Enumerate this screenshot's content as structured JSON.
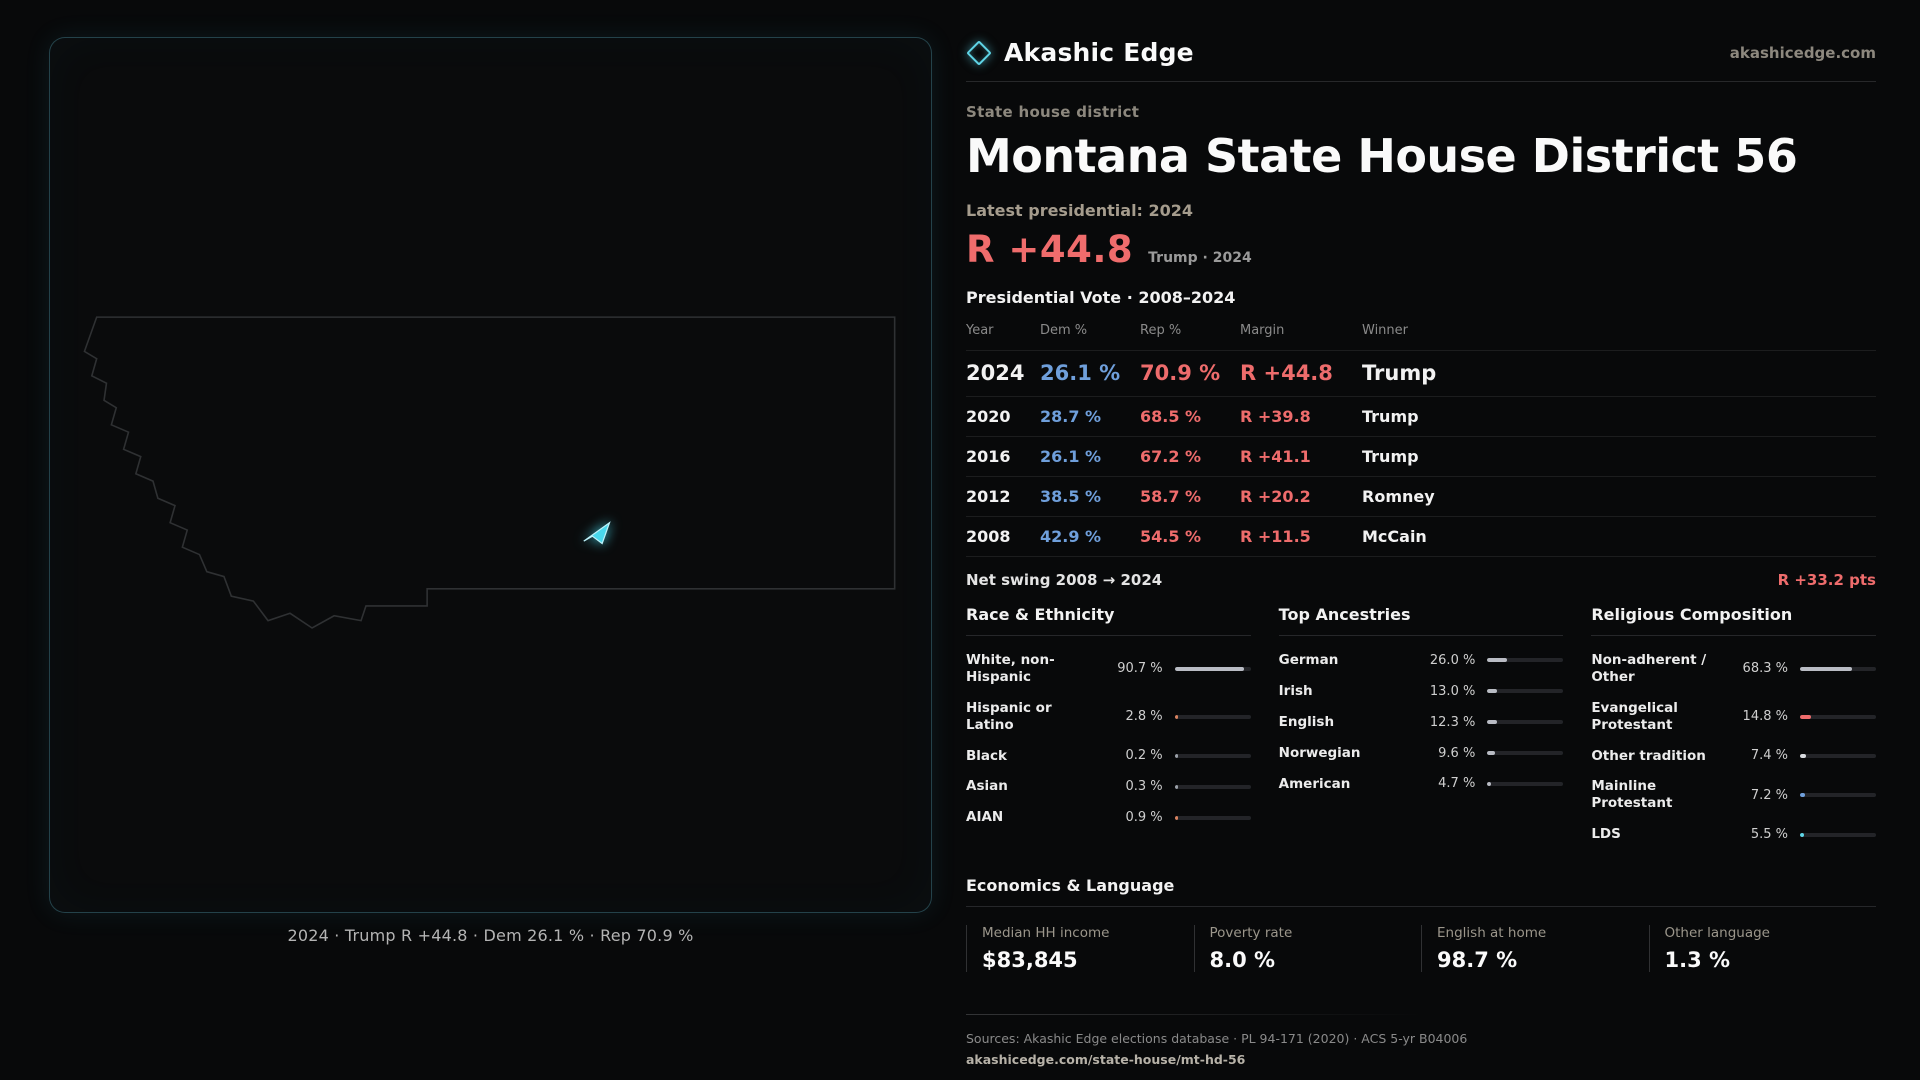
{
  "brand": {
    "name": "Akashic Edge",
    "domain": "akashicedge.com"
  },
  "header": {
    "category": "State house district",
    "title": "Montana State House District 56",
    "latest_label": "Latest presidential: 2024",
    "margin_value": "R +44.8",
    "margin_context": "Trump · 2024"
  },
  "map": {
    "caption": "2024 · Trump R +44.8 · Dem 26.1 % · Rep 70.9 %"
  },
  "vote_table": {
    "title": "Presidential Vote · 2008–2024",
    "columns": [
      "Year",
      "Dem %",
      "Rep %",
      "Margin",
      "Winner"
    ],
    "rows": [
      {
        "year": "2024",
        "dem": "26.1 %",
        "rep": "70.9 %",
        "margin": "R +44.8",
        "winner": "Trump"
      },
      {
        "year": "2020",
        "dem": "28.7 %",
        "rep": "68.5 %",
        "margin": "R +39.8",
        "winner": "Trump"
      },
      {
        "year": "2016",
        "dem": "26.1 %",
        "rep": "67.2 %",
        "margin": "R +41.1",
        "winner": "Trump"
      },
      {
        "year": "2012",
        "dem": "38.5 %",
        "rep": "58.7 %",
        "margin": "R +20.2",
        "winner": "Romney"
      },
      {
        "year": "2008",
        "dem": "42.9 %",
        "rep": "54.5 %",
        "margin": "R +11.5",
        "winner": "McCain"
      }
    ],
    "net_swing_label": "Net swing 2008 → 2024",
    "net_swing_value": "R +33.2 pts"
  },
  "demographics": {
    "race": {
      "title": "Race & Ethnicity",
      "items": [
        {
          "label": "White, non-Hispanic",
          "value": "90.7 %",
          "pct": 90.7,
          "color": "#b9bcc4"
        },
        {
          "label": "Hispanic or Latino",
          "value": "2.8 %",
          "pct": 2.8,
          "color": "#d9825f"
        },
        {
          "label": "Black",
          "value": "0.2 %",
          "pct": 0.2,
          "color": "#9aa0a8"
        },
        {
          "label": "Asian",
          "value": "0.3 %",
          "pct": 0.3,
          "color": "#9aa0a8"
        },
        {
          "label": "AIAN",
          "value": "0.9 %",
          "pct": 0.9,
          "color": "#d9825f"
        }
      ]
    },
    "ancestries": {
      "title": "Top Ancestries",
      "items": [
        {
          "label": "German",
          "value": "26.0 %",
          "pct": 26.0,
          "color": "#b9bcc4"
        },
        {
          "label": "Irish",
          "value": "13.0 %",
          "pct": 13.0,
          "color": "#b9bcc4"
        },
        {
          "label": "English",
          "value": "12.3 %",
          "pct": 12.3,
          "color": "#b9bcc4"
        },
        {
          "label": "Norwegian",
          "value": "9.6 %",
          "pct": 9.6,
          "color": "#b9bcc4"
        },
        {
          "label": "American",
          "value": "4.7 %",
          "pct": 4.7,
          "color": "#b9bcc4"
        }
      ]
    },
    "religion": {
      "title": "Religious Composition",
      "items": [
        {
          "label": "Non-adherent / Other",
          "value": "68.3 %",
          "pct": 68.3,
          "color": "#b9bcc4"
        },
        {
          "label": "Evangelical Protestant",
          "value": "14.8 %",
          "pct": 14.8,
          "color": "#ee6c6c"
        },
        {
          "label": "Other tradition",
          "value": "7.4 %",
          "pct": 7.4,
          "color": "#d8dade"
        },
        {
          "label": "Mainline Protestant",
          "value": "7.2 %",
          "pct": 7.2,
          "color": "#6f9fdb"
        },
        {
          "label": "LDS",
          "value": "5.5 %",
          "pct": 5.5,
          "color": "#5fd6e8"
        }
      ]
    }
  },
  "economics": {
    "title": "Economics & Language",
    "stats": [
      {
        "label": "Median HH income",
        "value": "$83,845"
      },
      {
        "label": "Poverty rate",
        "value": "8.0 %"
      },
      {
        "label": "English at home",
        "value": "98.7 %"
      },
      {
        "label": "Other language",
        "value": "1.3 %"
      }
    ]
  },
  "footer": {
    "sources": "Sources: Akashic Edge elections database · PL 94-171 (2020) · ACS 5-yr B04006",
    "permalink": "akashicedge.com/state-house/mt-hd-56"
  },
  "colors": {
    "rep_red": "#ee6c6c",
    "dem_blue": "#6f9fdb",
    "accent_cyan": "#5fd6e8"
  },
  "chart_data": [
    {
      "type": "table",
      "title": "Presidential Vote · 2008–2024",
      "columns": [
        "Year",
        "Dem %",
        "Rep %",
        "Margin",
        "Winner"
      ],
      "rows": [
        [
          "2024",
          26.1,
          70.9,
          "R +44.8",
          "Trump"
        ],
        [
          "2020",
          28.7,
          68.5,
          "R +39.8",
          "Trump"
        ],
        [
          "2016",
          26.1,
          67.2,
          "R +41.1",
          "Trump"
        ],
        [
          "2012",
          38.5,
          58.7,
          "R +20.2",
          "Romney"
        ],
        [
          "2008",
          42.9,
          54.5,
          "R +11.5",
          "McCain"
        ]
      ],
      "net_swing": "R +33.2 pts"
    },
    {
      "type": "bar",
      "title": "Race & Ethnicity",
      "categories": [
        "White, non-Hispanic",
        "Hispanic or Latino",
        "Black",
        "Asian",
        "AIAN"
      ],
      "values": [
        90.7,
        2.8,
        0.2,
        0.3,
        0.9
      ],
      "unit": "%",
      "xlim": [
        0,
        100
      ]
    },
    {
      "type": "bar",
      "title": "Top Ancestries",
      "categories": [
        "German",
        "Irish",
        "English",
        "Norwegian",
        "American"
      ],
      "values": [
        26.0,
        13.0,
        12.3,
        9.6,
        4.7
      ],
      "unit": "%",
      "xlim": [
        0,
        100
      ]
    },
    {
      "type": "bar",
      "title": "Religious Composition",
      "categories": [
        "Non-adherent / Other",
        "Evangelical Protestant",
        "Other tradition",
        "Mainline Protestant",
        "LDS"
      ],
      "values": [
        68.3,
        14.8,
        7.4,
        7.2,
        5.5
      ],
      "unit": "%",
      "xlim": [
        0,
        100
      ]
    }
  ]
}
